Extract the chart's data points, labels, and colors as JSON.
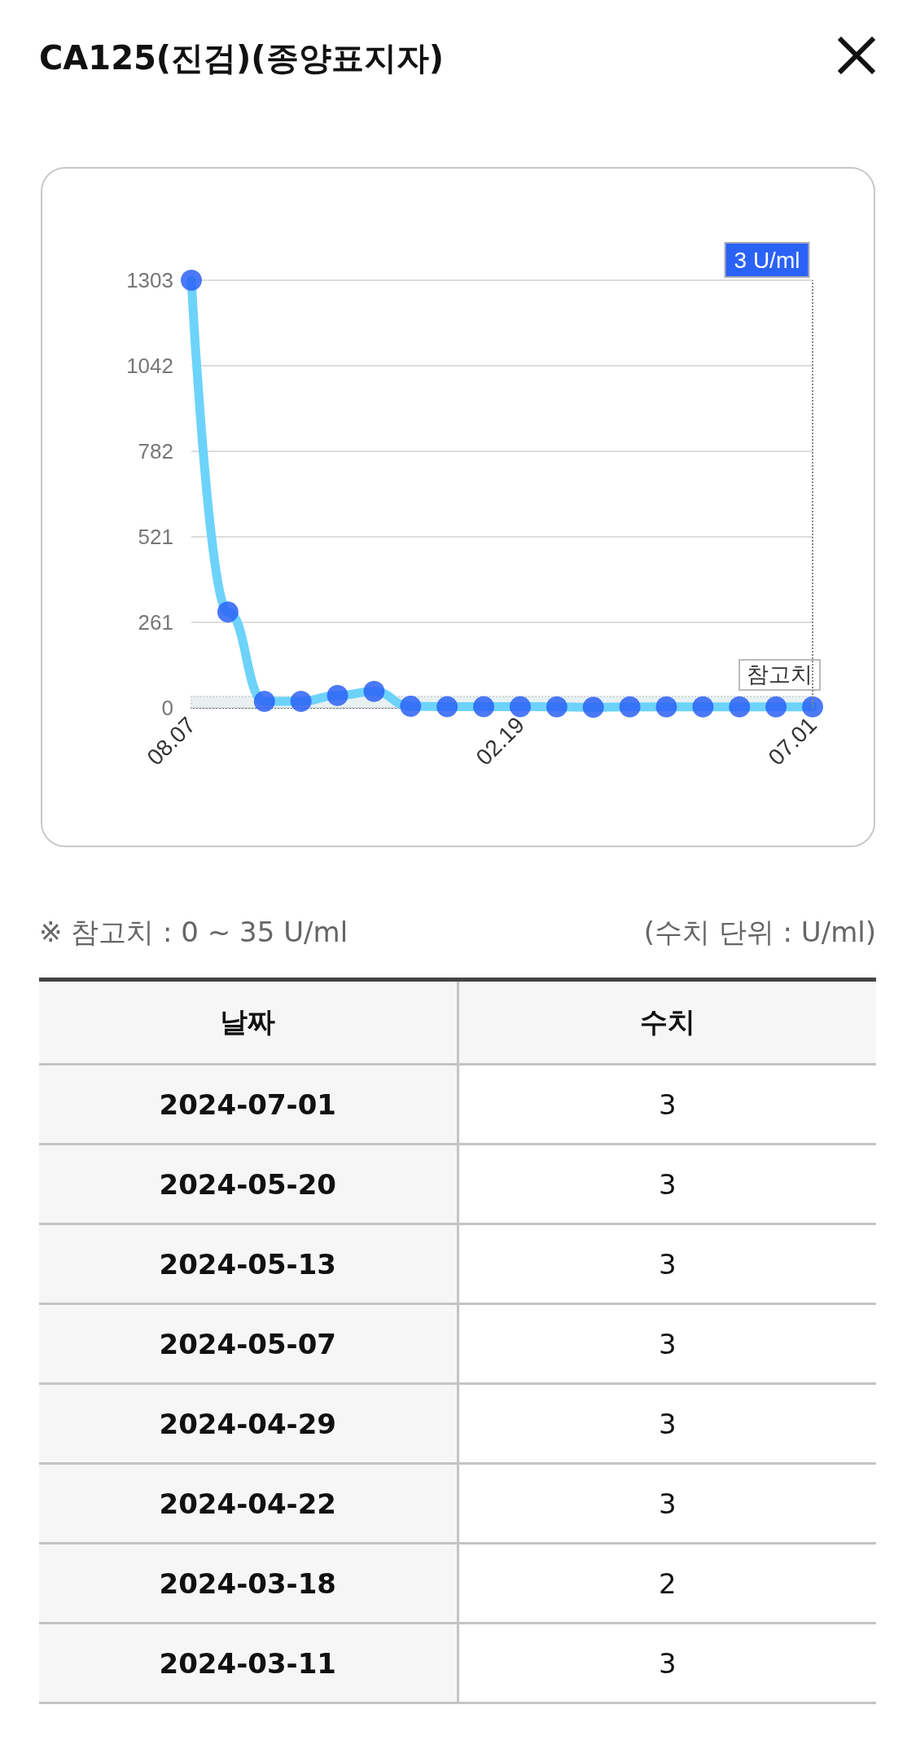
{
  "chart_data": [
    {
      "type": "line",
      "title": "CA125(진검)(종양표지자)",
      "categories": [
        "08.07",
        null,
        null,
        null,
        null,
        null,
        null,
        null,
        null,
        "02.19",
        null,
        null,
        null,
        null,
        null,
        null,
        null,
        "07.01"
      ],
      "series": [
        {
          "color": "#6dd3fb",
          "values": [
            1303,
            292,
            20,
            20,
            38,
            50,
            5,
            4,
            4,
            4,
            3,
            2,
            3,
            3,
            3,
            3,
            3,
            3
          ]
        }
      ],
      "ylim": [
        0,
        1303
      ],
      "yticks": [
        0,
        261,
        521,
        782,
        1042,
        1303
      ],
      "grid": "y",
      "marker": "circle",
      "line_style": "solid",
      "bands": [
        {
          "axis": "y",
          "from": 0,
          "to": 35,
          "label": "참고치",
          "color": "#e8f0f0"
        }
      ],
      "annotations": [
        "3 U/ml",
        "※ 참고치 : 0 ~ 35 U/ml",
        "(수치 단위 : U/ml)"
      ]
    },
    {
      "type": "other",
      "xlabel": "날짜",
      "ylabel": "수치",
      "categories": [
        "2024-07-01",
        "2024-05-20",
        "2024-05-13",
        "2024-05-07",
        "2024-04-29",
        "2024-04-22",
        "2024-03-18",
        "2024-03-11"
      ],
      "values": [
        3,
        3,
        3,
        3,
        3,
        3,
        2,
        3
      ],
      "data_labels": true
    }
  ]
}
